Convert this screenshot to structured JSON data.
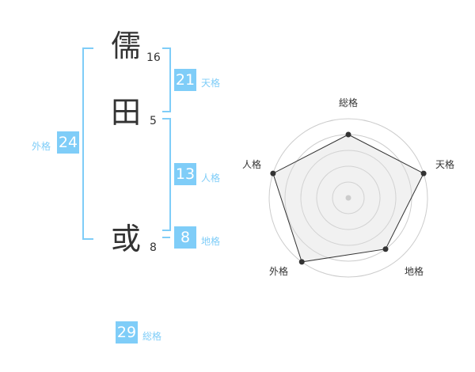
{
  "name": {
    "chars": [
      {
        "char": "儒",
        "strokes": "16"
      },
      {
        "char": "田",
        "strokes": "5"
      },
      {
        "char": "或",
        "strokes": "8"
      }
    ]
  },
  "scores": {
    "tenkaku": {
      "value": "21",
      "label": "天格"
    },
    "jinkaku": {
      "value": "13",
      "label": "人格"
    },
    "chikaku": {
      "value": "8",
      "label": "地格"
    },
    "gaikaku": {
      "value": "24",
      "label": "外格"
    },
    "soukaku": {
      "value": "29",
      "label": "総格"
    }
  },
  "accent_color": "#7fcdf8",
  "chart_data": {
    "type": "radar",
    "axes": [
      "総格",
      "天格",
      "地格",
      "外格",
      "人格"
    ],
    "values": [
      4,
      5,
      4,
      5,
      5
    ],
    "range": [
      0,
      5
    ],
    "rings": 5
  }
}
